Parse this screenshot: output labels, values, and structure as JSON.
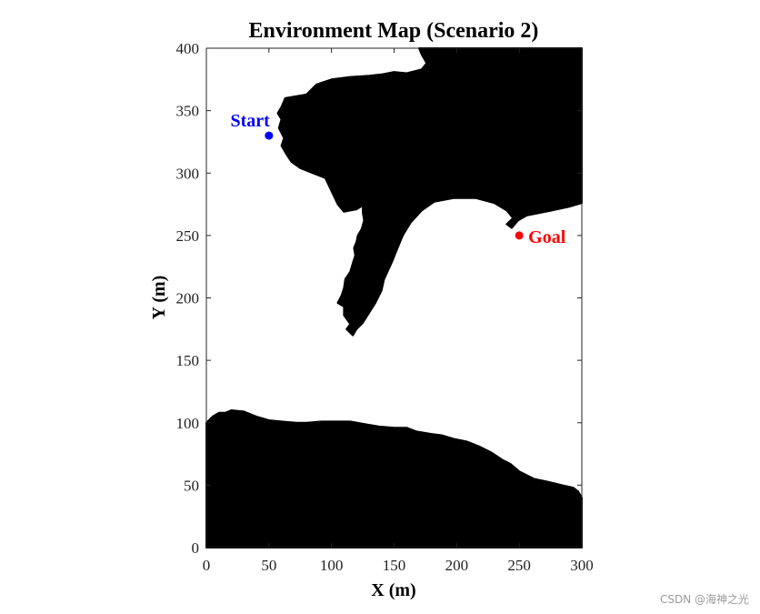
{
  "chart_data": {
    "type": "map",
    "title": "Environment Map (Scenario 2)",
    "xlabel": "X (m)",
    "ylabel": "Y (m)",
    "xlim": [
      0,
      300
    ],
    "ylim": [
      0,
      400
    ],
    "xticks": [
      0,
      50,
      100,
      150,
      200,
      250,
      300
    ],
    "yticks": [
      0,
      50,
      100,
      150,
      200,
      250,
      300,
      350,
      400
    ],
    "grid": false,
    "obstacle_color": "#000000",
    "free_color": "#ffffff",
    "obstacles": [
      {
        "name": "upper-obstacle",
        "points": [
          [
            170,
            400
          ],
          [
            172,
            395
          ],
          [
            176,
            388
          ],
          [
            172,
            383
          ],
          [
            160,
            380
          ],
          [
            150,
            381
          ],
          [
            140,
            379
          ],
          [
            130,
            378
          ],
          [
            115,
            377
          ],
          [
            100,
            375
          ],
          [
            88,
            371
          ],
          [
            80,
            363
          ],
          [
            63,
            360
          ],
          [
            60,
            353
          ],
          [
            57,
            348
          ],
          [
            60,
            343
          ],
          [
            58,
            336
          ],
          [
            62,
            328
          ],
          [
            60,
            322
          ],
          [
            64,
            315
          ],
          [
            68,
            309
          ],
          [
            75,
            304
          ],
          [
            85,
            300
          ],
          [
            95,
            296
          ],
          [
            105,
            275
          ],
          [
            110,
            269
          ],
          [
            120,
            271
          ],
          [
            125,
            274
          ],
          [
            125,
            268
          ],
          [
            126,
            262
          ],
          [
            124,
            255
          ],
          [
            121,
            250
          ],
          [
            120,
            245
          ],
          [
            118,
            240
          ],
          [
            119,
            234
          ],
          [
            117,
            228
          ],
          [
            115,
            221
          ],
          [
            111,
            215
          ],
          [
            110,
            208
          ],
          [
            108,
            202
          ],
          [
            105,
            196
          ],
          [
            110,
            193
          ],
          [
            110,
            186
          ],
          [
            115,
            179
          ],
          [
            112,
            175
          ],
          [
            117,
            170
          ],
          [
            120,
            175
          ],
          [
            125,
            180
          ],
          [
            130,
            188
          ],
          [
            135,
            196
          ],
          [
            140,
            206
          ],
          [
            142,
            215
          ],
          [
            148,
            228
          ],
          [
            152,
            238
          ],
          [
            157,
            250
          ],
          [
            163,
            260
          ],
          [
            172,
            270
          ],
          [
            182,
            277
          ],
          [
            198,
            280
          ],
          [
            215,
            280
          ],
          [
            230,
            276
          ],
          [
            240,
            270
          ],
          [
            245,
            264
          ],
          [
            240,
            259
          ],
          [
            244,
            256
          ],
          [
            249,
            262
          ],
          [
            256,
            266
          ],
          [
            266,
            268
          ],
          [
            276,
            270
          ],
          [
            290,
            273
          ],
          [
            300,
            276
          ],
          [
            300,
            400
          ]
        ]
      },
      {
        "name": "lower-obstacle",
        "points": [
          [
            0,
            0
          ],
          [
            300,
            0
          ],
          [
            300,
            40
          ],
          [
            297,
            45
          ],
          [
            293,
            48
          ],
          [
            284,
            50
          ],
          [
            272,
            53
          ],
          [
            262,
            55
          ],
          [
            250,
            61
          ],
          [
            243,
            67
          ],
          [
            237,
            70
          ],
          [
            228,
            76
          ],
          [
            218,
            81
          ],
          [
            208,
            85
          ],
          [
            198,
            87
          ],
          [
            188,
            90
          ],
          [
            180,
            91
          ],
          [
            168,
            93
          ],
          [
            160,
            96
          ],
          [
            150,
            96
          ],
          [
            138,
            97
          ],
          [
            126,
            99
          ],
          [
            115,
            101
          ],
          [
            103,
            101
          ],
          [
            92,
            101
          ],
          [
            80,
            100
          ],
          [
            72,
            100
          ],
          [
            60,
            101
          ],
          [
            50,
            102
          ],
          [
            40,
            105
          ],
          [
            30,
            109
          ],
          [
            20,
            110
          ],
          [
            15,
            108
          ],
          [
            10,
            108
          ],
          [
            5,
            105
          ],
          [
            0,
            100
          ]
        ]
      }
    ],
    "start": {
      "label": "Start",
      "x": 50,
      "y": 330,
      "color": "#0000ff"
    },
    "goal": {
      "label": "Goal",
      "x": 250,
      "y": 250,
      "color": "#ff0000"
    }
  },
  "watermark": "CSDN @海神之光"
}
